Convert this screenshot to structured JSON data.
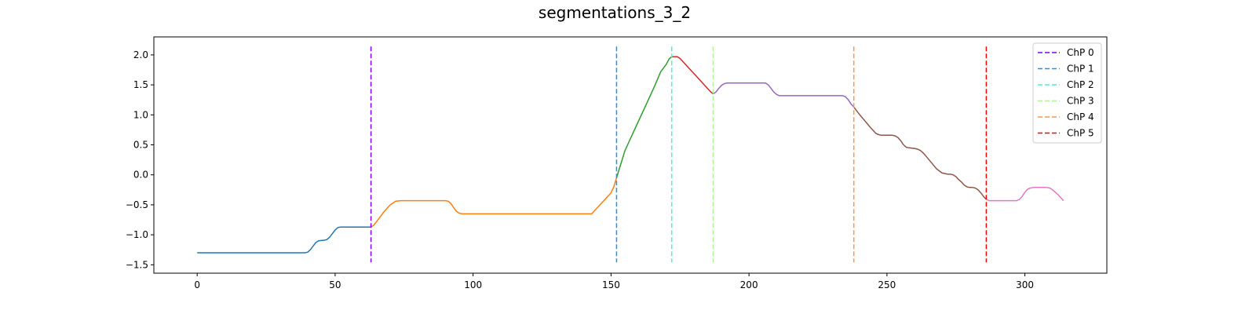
{
  "chart_data": {
    "type": "line",
    "title": "segmentations_3_2",
    "xlabel": "",
    "ylabel": "",
    "xlim": [
      -15.7,
      329.7
    ],
    "ylim": [
      -1.64,
      2.3
    ],
    "xticks": [
      0,
      50,
      100,
      150,
      200,
      250,
      300
    ],
    "yticks": [
      -1.5,
      -1.0,
      -0.5,
      0.0,
      0.5,
      1.0,
      1.5,
      2.0
    ],
    "xtick_labels": [
      "0",
      "50",
      "100",
      "150",
      "200",
      "250",
      "300"
    ],
    "ytick_labels": [
      "−1.5",
      "−1.0",
      "−0.5",
      "0.0",
      "0.5",
      "1.0",
      "1.5",
      "2.0"
    ],
    "grid": false,
    "legend_position": "top-right",
    "series": [
      {
        "color": "#1f77b4",
        "points": [
          [
            0,
            -1.3
          ],
          [
            20,
            -1.3
          ],
          [
            39,
            -1.3
          ],
          [
            40,
            -1.29
          ],
          [
            41,
            -1.25
          ],
          [
            42,
            -1.19
          ],
          [
            43,
            -1.13
          ],
          [
            44,
            -1.1
          ],
          [
            46,
            -1.09
          ],
          [
            47,
            -1.08
          ],
          [
            48,
            -1.04
          ],
          [
            49,
            -0.98
          ],
          [
            50,
            -0.92
          ],
          [
            51,
            -0.88
          ],
          [
            52,
            -0.87
          ],
          [
            58,
            -0.87
          ],
          [
            63,
            -0.87
          ]
        ]
      },
      {
        "color": "#ff7f0e",
        "points": [
          [
            63,
            -0.87
          ],
          [
            64,
            -0.84
          ],
          [
            66,
            -0.72
          ],
          [
            68,
            -0.6
          ],
          [
            70,
            -0.5
          ],
          [
            72,
            -0.44
          ],
          [
            74,
            -0.43
          ],
          [
            90,
            -0.43
          ],
          [
            91,
            -0.44
          ],
          [
            92,
            -0.48
          ],
          [
            93,
            -0.55
          ],
          [
            94,
            -0.61
          ],
          [
            95,
            -0.64
          ],
          [
            96,
            -0.65
          ],
          [
            120,
            -0.65
          ],
          [
            143,
            -0.65
          ],
          [
            144,
            -0.6
          ],
          [
            146,
            -0.5
          ],
          [
            148,
            -0.4
          ],
          [
            150,
            -0.3
          ],
          [
            151,
            -0.2
          ],
          [
            152,
            -0.05
          ]
        ]
      },
      {
        "color": "#2ca02c",
        "points": [
          [
            152,
            -0.05
          ],
          [
            153,
            0.1
          ],
          [
            154,
            0.25
          ],
          [
            155,
            0.4
          ],
          [
            156,
            0.5
          ],
          [
            158,
            0.7
          ],
          [
            160,
            0.9
          ],
          [
            162,
            1.1
          ],
          [
            164,
            1.3
          ],
          [
            166,
            1.5
          ],
          [
            168,
            1.72
          ],
          [
            170,
            1.84
          ],
          [
            171,
            1.93
          ],
          [
            172,
            1.97
          ]
        ]
      },
      {
        "color": "#d62728",
        "points": [
          [
            172,
            1.97
          ],
          [
            174,
            1.97
          ],
          [
            175,
            1.94
          ],
          [
            177,
            1.84
          ],
          [
            179,
            1.74
          ],
          [
            181,
            1.64
          ],
          [
            183,
            1.54
          ],
          [
            185,
            1.44
          ],
          [
            186,
            1.39
          ],
          [
            187,
            1.35
          ]
        ]
      },
      {
        "color": "#9467bd",
        "points": [
          [
            187,
            1.35
          ],
          [
            188,
            1.38
          ],
          [
            189,
            1.44
          ],
          [
            190,
            1.49
          ],
          [
            191,
            1.52
          ],
          [
            192,
            1.53
          ],
          [
            206,
            1.53
          ],
          [
            207,
            1.5
          ],
          [
            208,
            1.44
          ],
          [
            209,
            1.38
          ],
          [
            210,
            1.34
          ],
          [
            211,
            1.32
          ],
          [
            234,
            1.32
          ],
          [
            235,
            1.3
          ],
          [
            236,
            1.25
          ],
          [
            237,
            1.18
          ],
          [
            238,
            1.13
          ]
        ]
      },
      {
        "color": "#8c564b",
        "points": [
          [
            238,
            1.13
          ],
          [
            240,
            1.01
          ],
          [
            242,
            0.9
          ],
          [
            244,
            0.79
          ],
          [
            246,
            0.69
          ],
          [
            247,
            0.67
          ],
          [
            248,
            0.66
          ],
          [
            252,
            0.66
          ],
          [
            253,
            0.65
          ],
          [
            254,
            0.62
          ],
          [
            255,
            0.57
          ],
          [
            256,
            0.5
          ],
          [
            257,
            0.46
          ],
          [
            258,
            0.45
          ],
          [
            260,
            0.44
          ],
          [
            261,
            0.43
          ],
          [
            262,
            0.41
          ],
          [
            263,
            0.37
          ],
          [
            264,
            0.32
          ],
          [
            266,
            0.21
          ],
          [
            268,
            0.1
          ],
          [
            270,
            0.03
          ],
          [
            272,
            0.01
          ],
          [
            273,
            0.01
          ],
          [
            274,
            0.0
          ],
          [
            275,
            -0.03
          ],
          [
            276,
            -0.08
          ],
          [
            277,
            -0.12
          ],
          [
            278,
            -0.17
          ],
          [
            279,
            -0.2
          ],
          [
            280,
            -0.21
          ],
          [
            281,
            -0.21
          ],
          [
            282,
            -0.22
          ],
          [
            283,
            -0.25
          ],
          [
            284,
            -0.3
          ],
          [
            285,
            -0.36
          ],
          [
            286,
            -0.41
          ]
        ]
      },
      {
        "color": "#e377c2",
        "points": [
          [
            286,
            -0.41
          ],
          [
            287,
            -0.43
          ],
          [
            289,
            -0.43
          ],
          [
            296,
            -0.43
          ],
          [
            297,
            -0.43
          ],
          [
            298,
            -0.41
          ],
          [
            299,
            -0.36
          ],
          [
            300,
            -0.29
          ],
          [
            301,
            -0.24
          ],
          [
            302,
            -0.22
          ],
          [
            303,
            -0.21
          ],
          [
            304,
            -0.21
          ],
          [
            308,
            -0.21
          ],
          [
            309,
            -0.22
          ],
          [
            310,
            -0.25
          ],
          [
            311,
            -0.29
          ],
          [
            312,
            -0.33
          ],
          [
            313,
            -0.38
          ],
          [
            314,
            -0.43
          ]
        ]
      }
    ],
    "changepoints": [
      {
        "name": "ChP 0",
        "x": 63,
        "color": "#8000ff"
      },
      {
        "name": "ChP 1",
        "x": 152,
        "color": "#1996f3"
      },
      {
        "name": "ChP 2",
        "x": 172,
        "color": "#4cf2ce"
      },
      {
        "name": "ChP 3",
        "x": 187,
        "color": "#b2f396"
      },
      {
        "name": "ChP 4",
        "x": 238,
        "color": "#ff964f"
      },
      {
        "name": "ChP 5",
        "x": 286,
        "color": "#ff0000"
      }
    ],
    "changepoint_ylim": [
      -1.46,
      2.14
    ]
  }
}
